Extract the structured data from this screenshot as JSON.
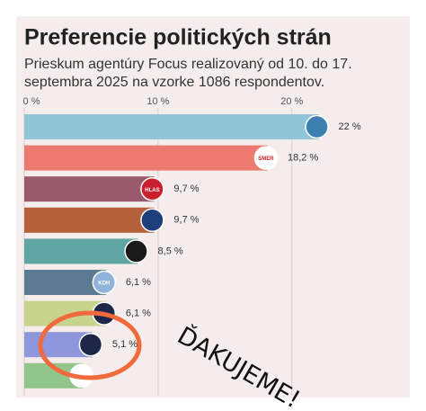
{
  "chart_data": {
    "type": "hbar",
    "title": "Preferencie politických strán",
    "subtitle": [
      "Prieskum agentúry Focus realizovaný od 10. do 17.",
      "septembra 2025 na vzorke 1086 respondentov."
    ],
    "values": [
      22,
      18.2,
      9.7,
      9.7,
      8.5,
      6.1,
      6.1,
      5.1,
      4.4
    ],
    "value_labels": [
      "22 %",
      "18,2 %",
      "9,7 %",
      "9,7 %",
      "8,5 %",
      "6,1 %",
      "6,1 %",
      "5,1 %",
      null
    ],
    "colors": [
      "#8fc5d6",
      "#ec7a70",
      "#9a5a6e",
      "#b3603b",
      "#5fa5a1",
      "#5b7990",
      "#c8d38d",
      "#8e97dc",
      "#92c58c"
    ],
    "logo_labels": [
      null,
      "SMER",
      "HLAS",
      null,
      null,
      "KDH",
      null,
      null,
      null
    ],
    "xlim": [
      0,
      22.5
    ],
    "xticks": [
      {
        "value": 0,
        "label": "0 %"
      },
      {
        "value": 10,
        "label": "10 %"
      },
      {
        "value": 20,
        "label": "20 %"
      }
    ],
    "grid": true,
    "annotation": "ĎAKUJEME!"
  }
}
